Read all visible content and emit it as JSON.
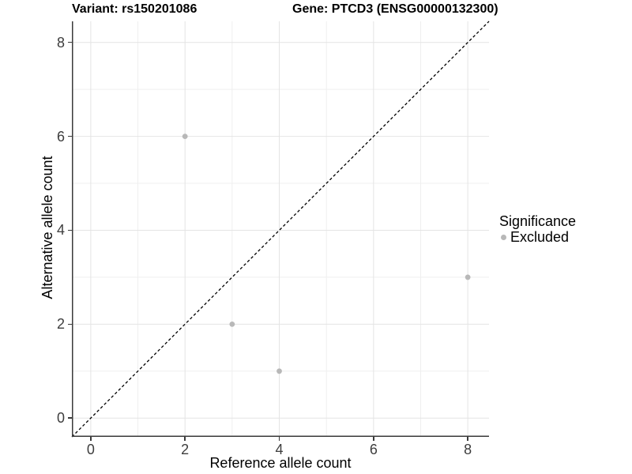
{
  "chart_data": {
    "type": "scatter",
    "title_left": "Variant: rs150201086",
    "title_right": "Gene: PTCD3 (ENSG00000132300)",
    "xlabel": "Reference allele count",
    "ylabel": "Alternative allele count",
    "xlim": [
      -0.4,
      8.45
    ],
    "ylim": [
      -0.4,
      8.45
    ],
    "x_ticks": [
      0,
      2,
      4,
      6,
      8
    ],
    "y_ticks": [
      0,
      2,
      4,
      6,
      8
    ],
    "x_minor_ticks": [
      1,
      3,
      5,
      7
    ],
    "y_minor_ticks": [
      1,
      3,
      5,
      7
    ],
    "grid": "major and minor light-gray gridlines on white background",
    "series": [
      {
        "name": "Excluded",
        "color": "#b8b8b8",
        "points": [
          [
            2,
            6
          ],
          [
            3,
            2
          ],
          [
            4,
            1
          ],
          [
            8,
            3
          ]
        ]
      }
    ],
    "reference_line": {
      "kind": "identity y=x",
      "style": "dashed",
      "color": "#000000",
      "from": [
        -0.4,
        -0.4
      ],
      "to": [
        8.45,
        8.45
      ]
    },
    "legend": {
      "title": "Significance",
      "position": "right",
      "items": [
        {
          "label": "Excluded",
          "color": "#b8b8b8"
        }
      ]
    }
  },
  "colors": {
    "background": "#ffffff",
    "grid_major": "#e4e4e4",
    "grid_minor": "#efefef",
    "axis_line": "#3a3a3a",
    "tick_text": "#3d3d3d",
    "point": "#b8b8b8",
    "reference_line": "#000000"
  }
}
